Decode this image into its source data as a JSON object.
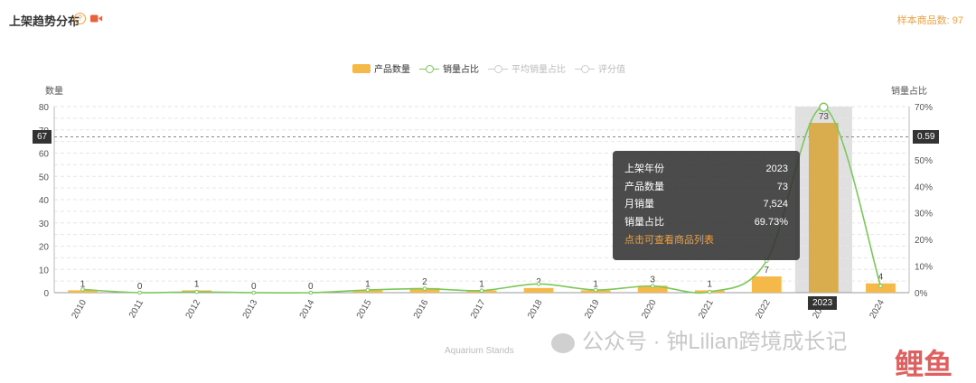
{
  "header": {
    "title": "上架趋势分布",
    "help_glyph": "?",
    "sample_label": "样本商品数:",
    "sample_value": "97"
  },
  "legend": [
    {
      "label": "产品数量",
      "color": "#f5b94a",
      "type": "bar",
      "active": true
    },
    {
      "label": "销量占比",
      "color": "#7bc85a",
      "type": "line",
      "active": true
    },
    {
      "label": "平均销量占比",
      "color": "#cccccc",
      "type": "line",
      "active": false
    },
    {
      "label": "评分值",
      "color": "#cccccc",
      "type": "line",
      "active": false
    }
  ],
  "axis_pointers": {
    "left": "67",
    "right": "0.59",
    "bottom": "2023"
  },
  "tooltip": {
    "rows": [
      {
        "label": "上架年份",
        "value": "2023"
      },
      {
        "label": "产品数量",
        "value": "73"
      },
      {
        "label": "月销量",
        "value": "7,524"
      },
      {
        "label": "销量占比",
        "value": "69.73%"
      }
    ],
    "link": "点击可查看商品列表"
  },
  "chart_data": {
    "type": "bar",
    "categories": [
      "2010",
      "2011",
      "2012",
      "2013",
      "2014",
      "2015",
      "2016",
      "2017",
      "2018",
      "2019",
      "2020",
      "2021",
      "2022",
      "2023",
      "2024"
    ],
    "series": [
      {
        "name": "产品数量",
        "type": "bar",
        "values": [
          1,
          0,
          1,
          0,
          0,
          1,
          2,
          1,
          2,
          1,
          3,
          1,
          7,
          73,
          4
        ]
      },
      {
        "name": "销量占比",
        "type": "line",
        "values": [
          1.2,
          0,
          0.3,
          0,
          0,
          1.0,
          1.5,
          0.8,
          3.3,
          1.0,
          2.5,
          0.3,
          12,
          69.73,
          2.5
        ]
      }
    ],
    "highlight_category": "2023",
    "xlabel": "Aquarium Stands",
    "ylabel": "数量",
    "y2label": "销量占比",
    "ylim": [
      0,
      80
    ],
    "y2lim": [
      0,
      70
    ],
    "yticks": [
      "0",
      "10",
      "20",
      "30",
      "40",
      "50",
      "60",
      "70",
      "80"
    ],
    "y2ticks": [
      "0%",
      "10%",
      "20%",
      "30%",
      "40%",
      "50%",
      "60%",
      "70%"
    ],
    "bar_color": "#f5b94a",
    "line_color": "#7bc85a",
    "grid": true
  },
  "watermark": {
    "text": "公众号 · 钟Lilian跨境成长记",
    "logo": "鲤鱼"
  }
}
